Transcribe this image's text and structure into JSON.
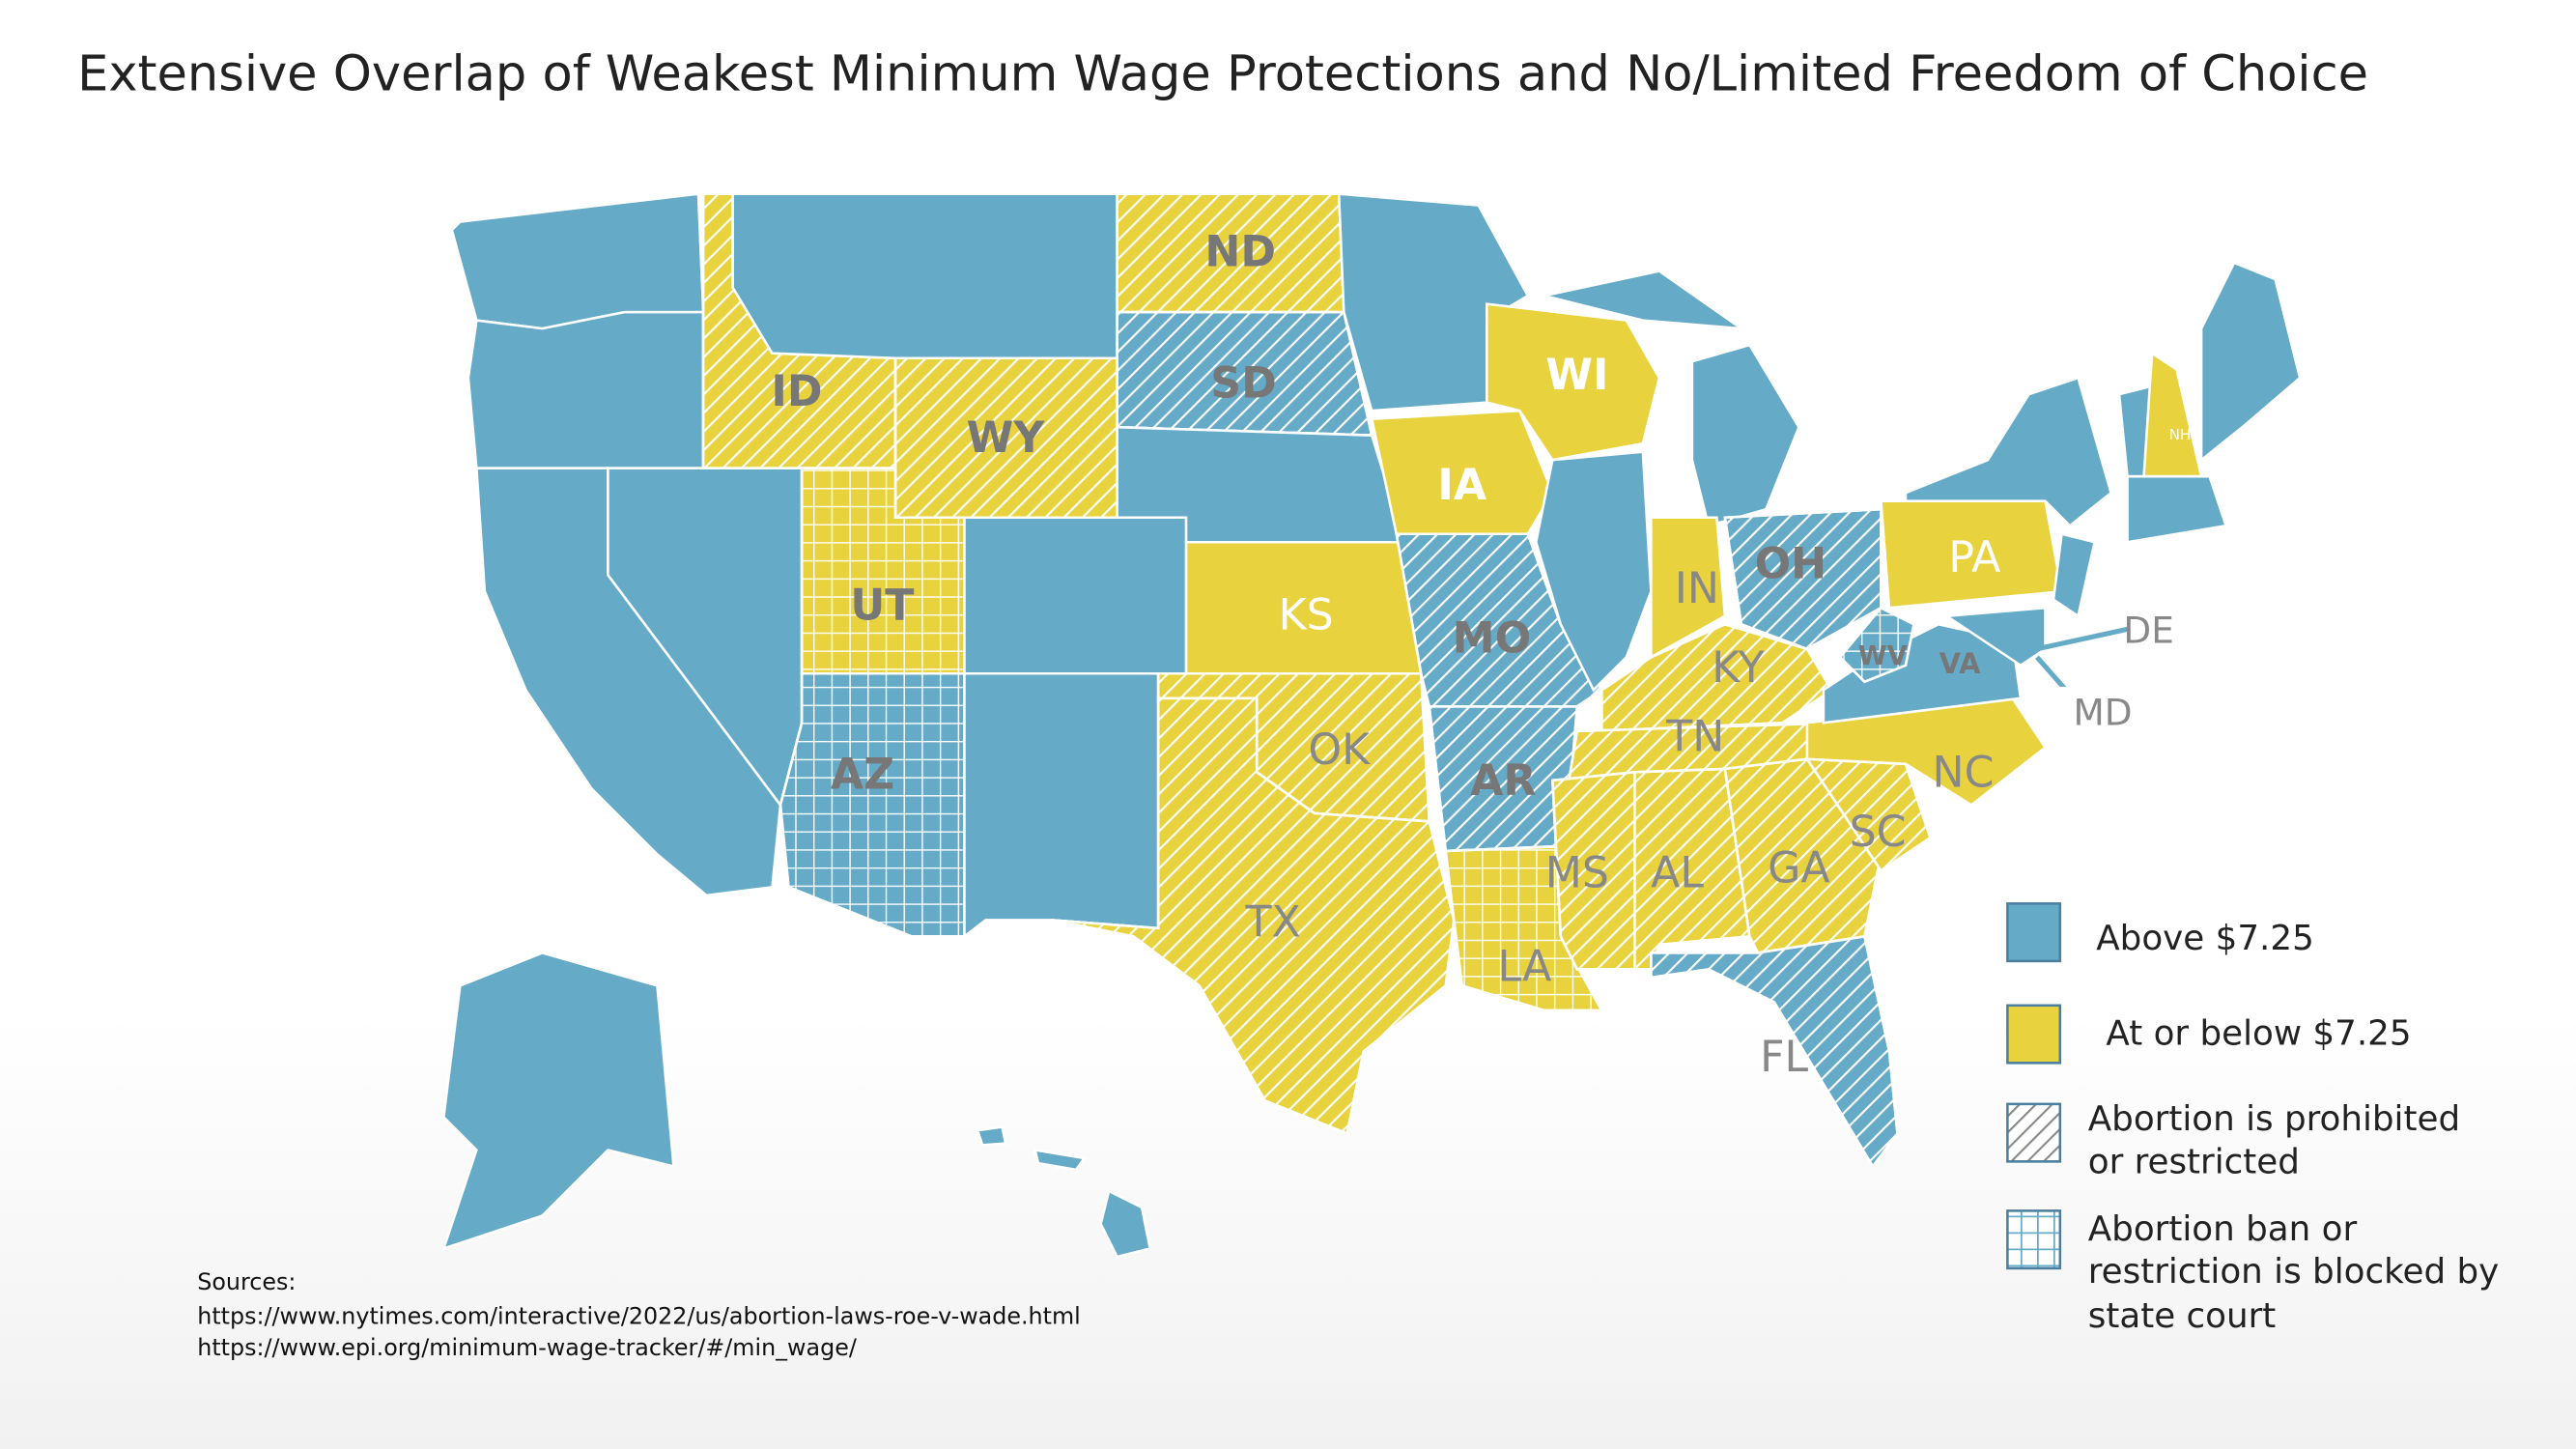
{
  "header": {
    "title": "Extensive Overlap of Weakest Minimum Wage Protections and No/Limited Freedom of Choice"
  },
  "state_labels": [
    "ID",
    "ND",
    "SD",
    "WY",
    "WI",
    "IA",
    "UT",
    "KS",
    "MO",
    "OH",
    "IN",
    "PA",
    "NH",
    "KY",
    "WV",
    "VA",
    "DE",
    "MD",
    "TN",
    "NC",
    "OK",
    "AR",
    "AZ",
    "SC",
    "GA",
    "AL",
    "MS",
    "TX",
    "LA",
    "FL"
  ],
  "legend": [
    {
      "label": [
        "Above $7.25"
      ],
      "color": "#65aac7"
    },
    {
      "label": [
        "At or below $7.25"
      ],
      "color": "#e8d33f"
    },
    {
      "label": [
        "Abortion is prohibited",
        "or restricted"
      ]
    },
    {
      "label": [
        "Abortion ban or",
        "restriction is blocked by",
        "state court"
      ]
    }
  ],
  "sources": {
    "heading": "Sources:",
    "lines": [
      "https://www.nytimes.com/interactive/2022/us/abortion-laws-roe-v-wade.html",
      "https://www.epi.org/minimum-wage-tracker/#/min_wage/"
    ]
  }
}
